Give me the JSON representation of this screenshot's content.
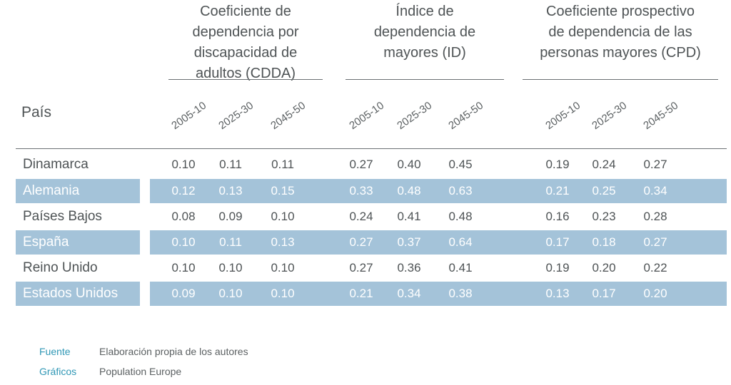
{
  "table": {
    "country_header": "País",
    "groups": [
      {
        "title": "Coeficiente de\ndependencia por\ndiscapacidad de\nadultos (CDDA)",
        "years": [
          "2005-10",
          "2025-30",
          "2045-50"
        ]
      },
      {
        "title": "Índice de\ndependencia de\nmayores (ID)",
        "years": [
          "2005-10",
          "2025-30",
          "2045-50"
        ]
      },
      {
        "title": "Coeficiente prospectivo\nde dependencia de las\npersonas mayores (CPD)",
        "years": [
          "2005-10",
          "2025-30",
          "2045-50"
        ]
      }
    ],
    "rows": [
      {
        "country": "Dinamarca",
        "highlight": false,
        "values": [
          "0.10",
          "0.11",
          "0.11",
          "0.27",
          "0.40",
          "0.45",
          "0.19",
          "0.24",
          "0.27"
        ]
      },
      {
        "country": "Alemania",
        "highlight": true,
        "values": [
          "0.12",
          "0.13",
          "0.15",
          "0.33",
          "0.48",
          "0.63",
          "0.21",
          "0.25",
          "0.34"
        ]
      },
      {
        "country": "Países Bajos",
        "highlight": false,
        "values": [
          "0.08",
          "0.09",
          "0.10",
          "0.24",
          "0.41",
          "0.48",
          "0.16",
          "0.23",
          "0.28"
        ]
      },
      {
        "country": "España",
        "highlight": true,
        "values": [
          "0.10",
          "0.11",
          "0.13",
          "0.27",
          "0.37",
          "0.64",
          "0.17",
          "0.18",
          "0.27"
        ]
      },
      {
        "country": "Reino Unido",
        "highlight": false,
        "values": [
          "0.10",
          "0.10",
          "0.10",
          "0.27",
          "0.36",
          "0.41",
          "0.19",
          "0.20",
          "0.22"
        ]
      },
      {
        "country": "Estados Unidos",
        "highlight": true,
        "values": [
          "0.09",
          "0.10",
          "0.10",
          "0.21",
          "0.34",
          "0.38",
          "0.13",
          "0.17",
          "0.20"
        ]
      }
    ]
  },
  "footer": {
    "source_label": "Fuente",
    "source_value": "Elaboración propia de los autores",
    "graphics_label": "Gráficos",
    "graphics_value": "Population Europe"
  },
  "colors": {
    "highlight_band": "#a4c3d9",
    "footer_label": "#2f97b5"
  }
}
